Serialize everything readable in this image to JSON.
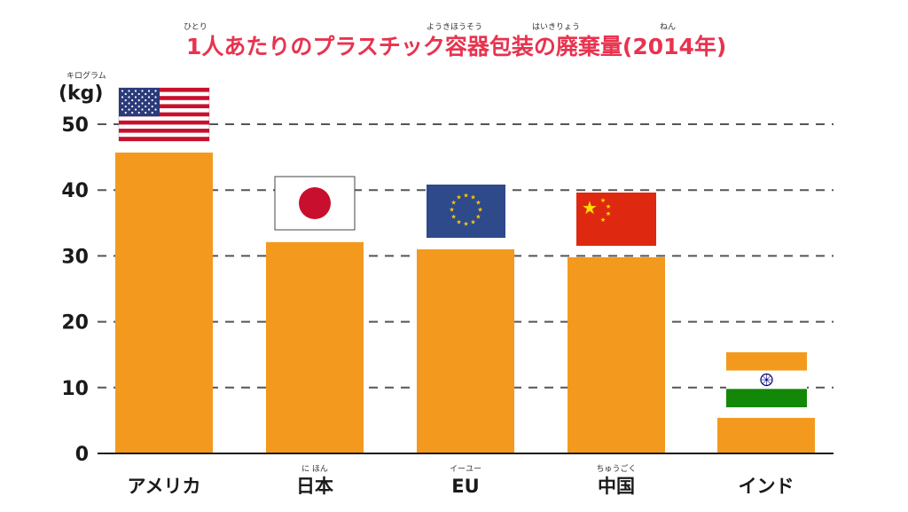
{
  "colors": {
    "bar": "#f39a1e",
    "title": "#e8334f",
    "grid": "#555555",
    "text": "#1a1a1a"
  },
  "chart_data": {
    "type": "bar",
    "title": "1人あたりのプラスチック容器包装の廃棄量(2014年)",
    "title_ruby": [
      {
        "base": "1人",
        "reading": "ひとり"
      },
      {
        "base": "容器包装",
        "reading": "ようきほうそう"
      },
      {
        "base": "廃棄量",
        "reading": "はいきりょう"
      },
      {
        "base": "年",
        "reading": "ねん"
      }
    ],
    "ylabel": "(kg)",
    "ylabel_ruby": "キログラム",
    "xlabel": "",
    "ylim": [
      0,
      55
    ],
    "yticks": [
      0,
      10,
      20,
      30,
      40,
      50
    ],
    "grid": true,
    "categories": [
      "アメリカ",
      "日本",
      "EU",
      "中国",
      "インド"
    ],
    "category_ruby": [
      "",
      "に ほん",
      "イーユー",
      "ちゅうごく",
      ""
    ],
    "values": [
      45.7,
      32.1,
      31.0,
      29.8,
      5.4
    ],
    "flags": [
      "usa-flag",
      "japan-flag",
      "eu-flag",
      "china-flag",
      "india-flag"
    ]
  }
}
